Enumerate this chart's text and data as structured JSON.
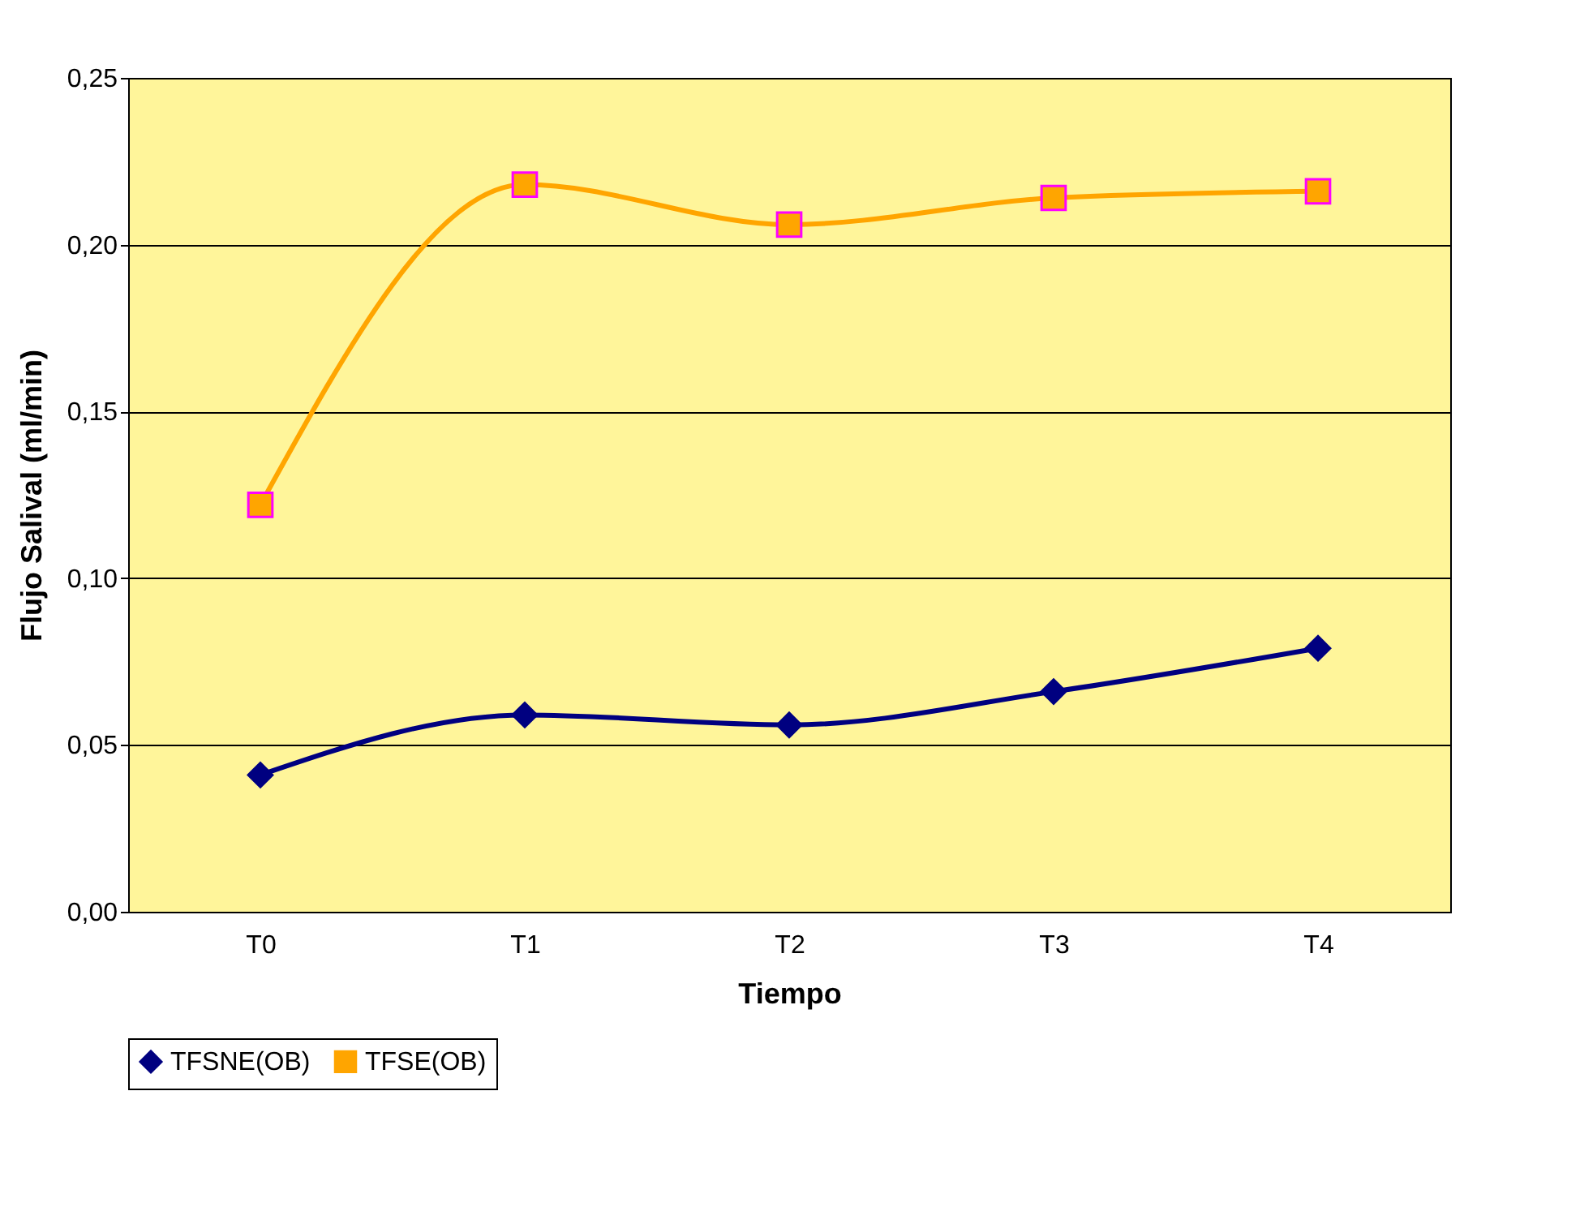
{
  "chart_data": {
    "type": "line",
    "xlabel": "Tiempo",
    "ylabel": "Flujo Salival (ml/min)",
    "categories": [
      "T0",
      "T1",
      "T2",
      "T3",
      "T4"
    ],
    "series": [
      {
        "name": "TFSNE(OB)",
        "color": "#000080",
        "marker": "diamond",
        "values": [
          0.041,
          0.059,
          0.056,
          0.066,
          0.079
        ]
      },
      {
        "name": "TFSE(OB)",
        "color": "#ffa500",
        "marker": "square",
        "values": [
          0.122,
          0.218,
          0.206,
          0.214,
          0.216
        ]
      }
    ],
    "ylim": [
      0,
      0.25
    ],
    "yticks": [
      {
        "value": 0,
        "label": "0,00"
      },
      {
        "value": 0.05,
        "label": "0,05"
      },
      {
        "value": 0.1,
        "label": "0,10"
      },
      {
        "value": 0.15,
        "label": "0,15"
      },
      {
        "value": 0.2,
        "label": "0,20"
      },
      {
        "value": 0.25,
        "label": "0,25"
      }
    ],
    "grid": "y",
    "legend": "bottom",
    "line_style": "solid"
  }
}
